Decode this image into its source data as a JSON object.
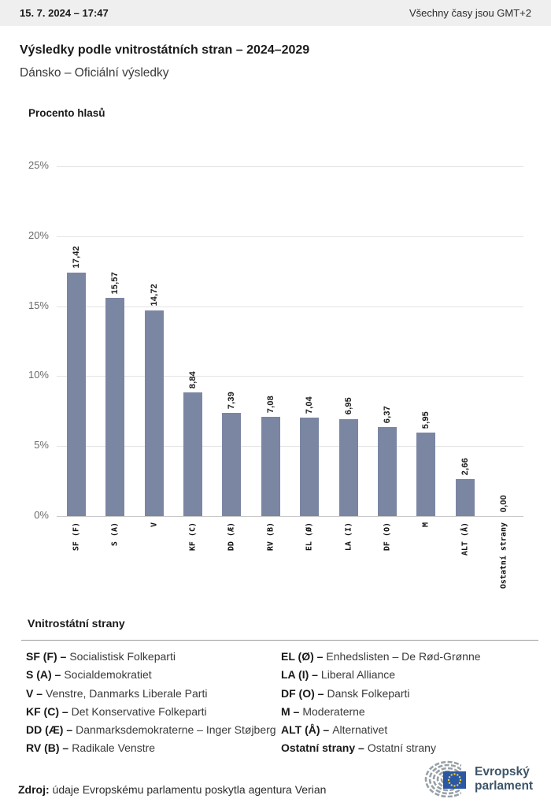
{
  "header": {
    "datetime": "15. 7. 2024 – 17:47",
    "timezone_note": "Všechny časy jsou GMT+2"
  },
  "title": "Výsledky podle vnitrostátních stran – 2024–2029",
  "subtitle": "Dánsko – Oficiální výsledky",
  "chart_data": {
    "type": "bar",
    "title": "Procento hlasů",
    "categories": [
      "SF (F)",
      "S (A)",
      "V",
      "KF (C)",
      "DD (Æ)",
      "RV (B)",
      "EL (Ø)",
      "LA (I)",
      "DF (O)",
      "M",
      "ALT (Å)",
      "Ostatní strany"
    ],
    "values": [
      17.42,
      15.57,
      14.72,
      8.84,
      7.39,
      7.08,
      7.04,
      6.95,
      6.37,
      5.95,
      2.66,
      0.0
    ],
    "value_labels": [
      "17,42",
      "15,57",
      "14,72",
      "8,84",
      "7,39",
      "7,08",
      "7,04",
      "6,95",
      "6,37",
      "5,95",
      "2,66",
      "0,00"
    ],
    "ylabel": "Procento hlasů",
    "xlabel": "",
    "ylim": [
      0,
      25
    ],
    "ytick_values": [
      25,
      20,
      15,
      10,
      5,
      0
    ],
    "yticks": [
      "25%",
      "20%",
      "15%",
      "10%",
      "5%",
      "0%"
    ],
    "grid": true,
    "legend_position": "none",
    "bar_color": "#7b86a3"
  },
  "legend": {
    "heading": "Vnitrostátní strany",
    "left": [
      {
        "abbr": "SF (F) –",
        "name": "Socialistisk Folkeparti"
      },
      {
        "abbr": "S (A) –",
        "name": "Socialdemokratiet"
      },
      {
        "abbr": "V –",
        "name": "Venstre, Danmarks Liberale Parti"
      },
      {
        "abbr": "KF (C) –",
        "name": "Det Konservative Folkeparti"
      },
      {
        "abbr": "DD (Æ) –",
        "name": "Danmarksdemokraterne – Inger Støjberg"
      },
      {
        "abbr": "RV (B) –",
        "name": "Radikale Venstre"
      }
    ],
    "right": [
      {
        "abbr": "EL (Ø) –",
        "name": "Enhedslisten – De Rød-Grønne"
      },
      {
        "abbr": "LA (I) –",
        "name": "Liberal Alliance"
      },
      {
        "abbr": "DF (O) –",
        "name": "Dansk Folkeparti"
      },
      {
        "abbr": "M –",
        "name": "Moderaterne"
      },
      {
        "abbr": "ALT (Å) –",
        "name": "Alternativet"
      },
      {
        "abbr": "Ostatní strany –",
        "name": "Ostatní strany"
      }
    ]
  },
  "footer": {
    "source_label": "Zdroj:",
    "source_text": "údaje Evropskému parlamentu poskytla agentura Verian"
  },
  "logo": {
    "line1": "Evropský",
    "line2": "parlament",
    "flag_color": "#2b58a4",
    "star_color": "#f7d020",
    "hemicycle_color": "#98a0a6",
    "text_color": "#3d5468"
  }
}
